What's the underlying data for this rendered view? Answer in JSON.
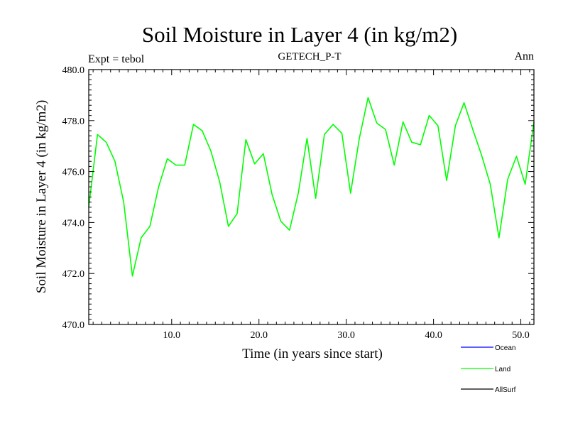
{
  "chart_data": {
    "type": "line",
    "title": "Soil Moisture in Layer 4 (in kg/m2)",
    "subtitle": "GETECH_P-T",
    "left_label": "Expt = tebol",
    "right_label": "Ann",
    "xlabel": "Time (in years since start)",
    "ylabel": "Soil Moisture in Layer 4 (in kg/m2)",
    "xlim": [
      0.5,
      51.5
    ],
    "ylim": [
      470,
      480
    ],
    "xticks": [
      10,
      20,
      30,
      40,
      50
    ],
    "xtick_labels": [
      "10.0",
      "20.0",
      "30.0",
      "40.0",
      "50.0"
    ],
    "yticks": [
      470,
      472,
      474,
      476,
      478,
      480
    ],
    "ytick_labels": [
      "470.0",
      "472.0",
      "474.0",
      "476.0",
      "478.0",
      "480.0"
    ],
    "legend": [
      {
        "name": "Ocean",
        "color": "#0000ff"
      },
      {
        "name": "Land",
        "color": "#00ff00"
      },
      {
        "name": "AllSurf",
        "color": "#000000"
      }
    ],
    "legend_position": "bottom-right",
    "series": [
      {
        "name": "Land",
        "color": "#00ff00",
        "x": [
          0.5,
          1.5,
          2.5,
          3.5,
          4.5,
          5.5,
          6.5,
          7.5,
          8.5,
          9.5,
          10.5,
          11.5,
          12.5,
          13.5,
          14.5,
          15.5,
          16.5,
          17.5,
          18.5,
          19.5,
          20.5,
          21.5,
          22.5,
          23.5,
          24.5,
          25.5,
          26.5,
          27.5,
          28.5,
          29.5,
          30.5,
          31.5,
          32.5,
          33.5,
          34.5,
          35.5,
          36.5,
          37.5,
          38.5,
          39.5,
          40.5,
          41.5,
          42.5,
          43.5,
          44.5,
          45.5,
          46.5,
          47.5,
          48.5,
          49.5,
          50.5,
          51.5
        ],
        "values": [
          474.6,
          477.45,
          477.15,
          476.4,
          474.8,
          471.9,
          473.4,
          473.85,
          475.4,
          476.5,
          476.25,
          476.25,
          477.85,
          477.6,
          476.8,
          475.6,
          473.85,
          474.35,
          477.25,
          476.3,
          476.7,
          475.1,
          474.05,
          473.7,
          475.15,
          477.3,
          474.95,
          477.45,
          477.85,
          477.5,
          475.15,
          477.3,
          478.9,
          477.9,
          477.65,
          476.25,
          477.95,
          477.15,
          477.05,
          478.2,
          477.8,
          475.65,
          477.8,
          478.7,
          477.65,
          476.65,
          475.5,
          473.4,
          475.7,
          476.6,
          475.5,
          477.95
        ]
      }
    ]
  }
}
